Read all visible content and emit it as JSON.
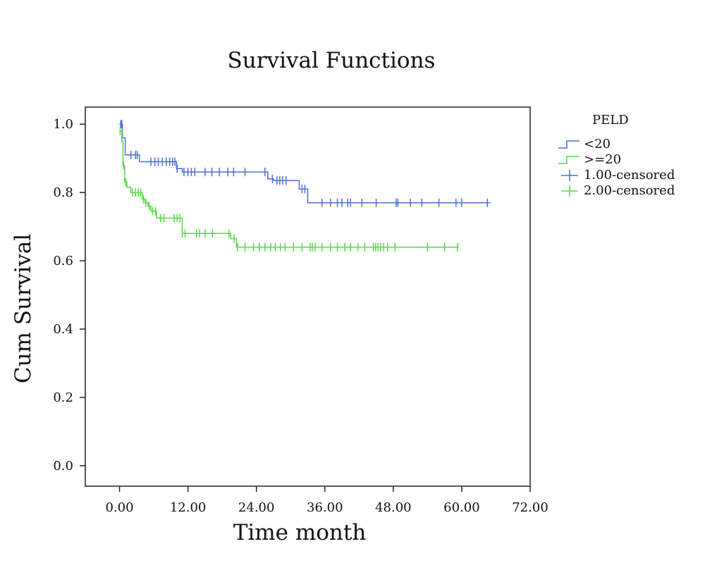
{
  "chart_data": {
    "type": "line",
    "title": "Survival Functions",
    "xlabel": "Time month",
    "ylabel": "Cum Survival",
    "xlim": [
      -6,
      72
    ],
    "ylim": [
      -0.06,
      1.05
    ],
    "x_ticks": [
      "0.00",
      "12.00",
      "24.00",
      "36.00",
      "48.00",
      "60.00",
      "72.00"
    ],
    "x_tick_values": [
      0,
      12,
      24,
      36,
      48,
      60,
      72
    ],
    "y_ticks": [
      "0.0",
      "0.2",
      "0.4",
      "0.6",
      "0.8",
      "1.0"
    ],
    "y_tick_values": [
      0,
      0.2,
      0.4,
      0.6,
      0.8,
      1.0
    ],
    "legend_title": "PELD",
    "legend_placement": "right",
    "grid": false,
    "series": [
      {
        "name": "<20",
        "censored_name": "1.00-censored",
        "color": "#4a6fd6",
        "steps": [
          [
            0,
            1.0
          ],
          [
            0.5,
            0.96
          ],
          [
            1.0,
            0.91
          ],
          [
            3.5,
            0.89
          ],
          [
            10.0,
            0.87
          ],
          [
            11.0,
            0.86
          ],
          [
            26.0,
            0.84
          ],
          [
            27.0,
            0.835
          ],
          [
            31.5,
            0.81
          ],
          [
            33.0,
            0.77
          ],
          [
            65.0,
            0.77
          ]
        ],
        "censored": [
          0.2,
          0.4,
          2.0,
          2.8,
          3.1,
          5.5,
          6.2,
          6.8,
          7.5,
          8.2,
          8.8,
          9.3,
          9.7,
          10.1,
          11.3,
          12.0,
          12.6,
          13.2,
          15.0,
          16.2,
          17.5,
          19.0,
          20.0,
          22.0,
          25.5,
          26.8,
          27.6,
          28.1,
          28.6,
          29.2,
          32.0,
          32.5,
          35.5,
          37.0,
          38.2,
          39.0,
          40.0,
          40.5,
          42.5,
          45.0,
          48.5,
          48.8,
          51.0,
          53.0,
          56.0,
          59.0,
          60.0,
          64.5
        ]
      },
      {
        "name": ">=20",
        "censored_name": "2.00-censored",
        "color": "#59d84a",
        "steps": [
          [
            0,
            0.98
          ],
          [
            0.4,
            0.95
          ],
          [
            0.6,
            0.88
          ],
          [
            0.9,
            0.83
          ],
          [
            1.3,
            0.815
          ],
          [
            2.0,
            0.8
          ],
          [
            4.0,
            0.78
          ],
          [
            4.5,
            0.77
          ],
          [
            5.0,
            0.76
          ],
          [
            5.5,
            0.745
          ],
          [
            6.5,
            0.725
          ],
          [
            11.0,
            0.68
          ],
          [
            19.5,
            0.665
          ],
          [
            20.5,
            0.64
          ],
          [
            59.5,
            0.64
          ]
        ],
        "censored": [
          0.1,
          0.7,
          1.1,
          2.3,
          2.8,
          3.3,
          3.7,
          4.2,
          4.6,
          5.2,
          5.8,
          6.3,
          7.2,
          7.8,
          9.6,
          10.1,
          10.6,
          11.0,
          11.5,
          13.5,
          14.0,
          15.0,
          16.3,
          19.2,
          20.1,
          20.7,
          22.0,
          23.5,
          24.5,
          25.5,
          26.5,
          27.3,
          28.2,
          29.0,
          30.5,
          32.0,
          33.4,
          33.8,
          34.3,
          35.5,
          37.0,
          38.2,
          39.5,
          40.5,
          41.8,
          43.0,
          44.5,
          44.9,
          45.3,
          45.8,
          46.3,
          47.0,
          48.3,
          54.0,
          57.0,
          59.3
        ]
      }
    ]
  }
}
